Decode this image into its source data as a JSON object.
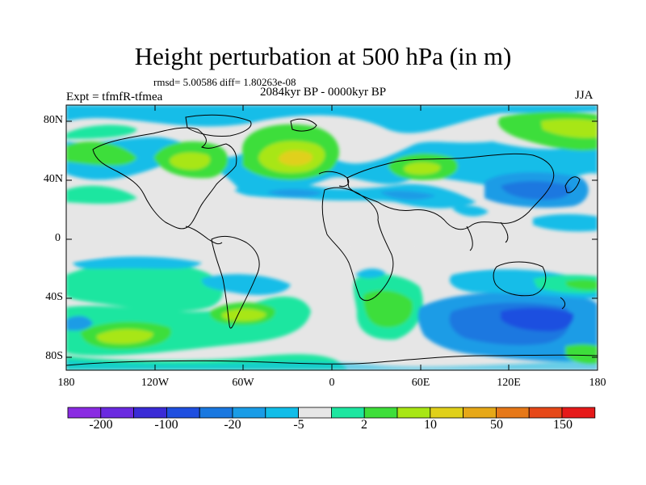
{
  "title": "Height perturbation at 500 hPa (in m)",
  "stats": "rmsd= 5.00586 diff= 1.80263e-08",
  "expt": "Expt = tfmfR-tfmea",
  "period": "2084kyr BP - 0000kyr BP",
  "season": "JJA",
  "lat_labels": [
    "80N",
    "40N",
    "0",
    "40S",
    "80S"
  ],
  "lon_labels": [
    "180",
    "120W",
    "60W",
    "0",
    "60E",
    "120E",
    "180"
  ],
  "colorbar": {
    "colors": [
      "#8a2be2",
      "#6a2ae0",
      "#3a2bd6",
      "#1f4fe0",
      "#1a78e0",
      "#1a9ce6",
      "#12bde8",
      "#e6e6e6",
      "#1de6a0",
      "#3ede3a",
      "#a8e614",
      "#e0d01a",
      "#e6a818",
      "#e67818",
      "#e64818",
      "#e61a1a"
    ],
    "labels": [
      "-200",
      "-100",
      "-20",
      "-5",
      "2",
      "10",
      "50",
      "150"
    ]
  }
}
